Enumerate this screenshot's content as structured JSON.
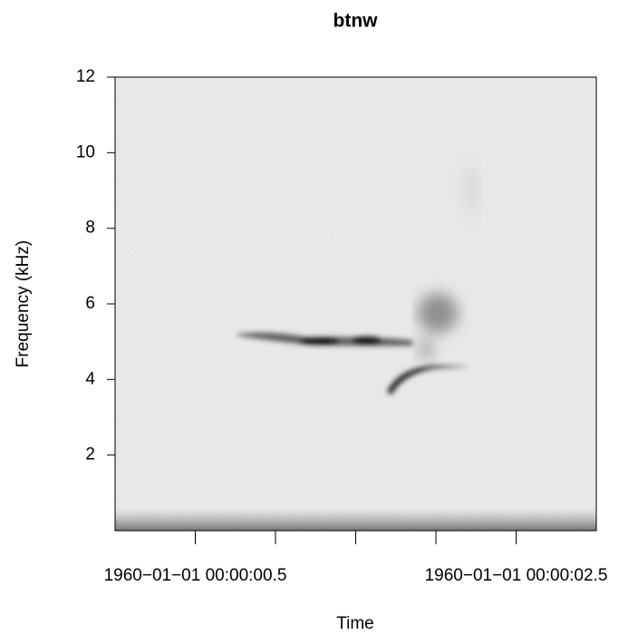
{
  "chart_data": {
    "type": "spectrogram",
    "title": "btnw",
    "xlabel": "Time",
    "ylabel": "Frequency (kHz)",
    "xlim": [
      0,
      3
    ],
    "xticks": [
      {
        "value": 0.5,
        "label": "1960−01−01 00:00:00.5"
      },
      {
        "value": 1,
        "label": null
      },
      {
        "value": 1.5,
        "label": null
      },
      {
        "value": 2,
        "label": null
      },
      {
        "value": 2.5,
        "label": "1960−01−01 00:00:02.5"
      }
    ],
    "ylim": [
      0,
      12
    ],
    "yticks": [
      2,
      4,
      6,
      8,
      10,
      12
    ]
  }
}
